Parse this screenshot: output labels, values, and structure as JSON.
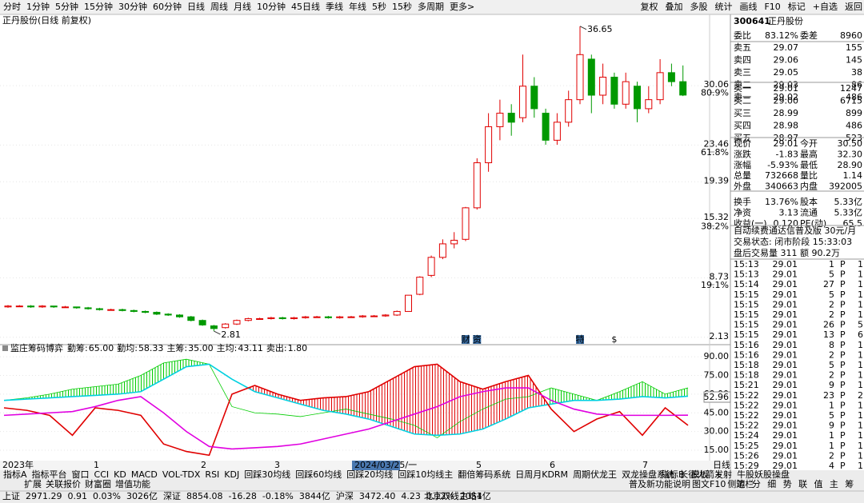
{
  "toolbar": {
    "periods": [
      "分时",
      "1分钟",
      "5分钟",
      "15分钟",
      "30分钟",
      "60分钟",
      "日线",
      "周线",
      "月线",
      "10分钟",
      "45日线",
      "季线",
      "年线",
      "5秒",
      "15秒",
      "多周期",
      "更多>"
    ],
    "active": "日线",
    "tools": [
      "复权",
      "叠加",
      "多股",
      "统计",
      "画线",
      "F10",
      "标记",
      "+自选",
      "返回"
    ]
  },
  "chart_data": [
    {
      "type": "candlestick",
      "title": "正丹股份(日线 前复权)",
      "ylim": [
        1.4,
        36.9
      ],
      "yticks": [
        30.06,
        23.46,
        19.39,
        15.32,
        8.73,
        2.13
      ],
      "ratio_ticks": [
        {
          "value": 29.3,
          "label": "80.9%"
        },
        {
          "value": 22.7,
          "label": "61.8%"
        },
        {
          "value": 14.5,
          "label": "38.2%"
        },
        {
          "value": 7.97,
          "label": "19.1%"
        }
      ],
      "up_color": "#e00000",
      "down_color": "#009900",
      "high_label": 36.65,
      "high_index": 50,
      "low_label": 2.81,
      "low_index": 18,
      "markers": [
        {
          "label": "财",
          "index": 40
        },
        {
          "label": "资",
          "index": 41
        },
        {
          "label": "特",
          "index": 50
        },
        {
          "label": "$",
          "index": 53
        }
      ],
      "x_labels": [
        "2023年",
        "1",
        "2",
        "3",
        "2024/03/25/一",
        "5",
        "6",
        "7"
      ],
      "candles": [
        [
          5.5,
          5.6,
          5.7,
          5.4
        ],
        [
          5.6,
          5.6,
          5.7,
          5.5
        ],
        [
          5.6,
          5.5,
          5.7,
          5.4
        ],
        [
          5.5,
          5.6,
          5.7,
          5.4
        ],
        [
          5.6,
          5.5,
          5.6,
          5.4
        ],
        [
          5.5,
          5.5,
          5.6,
          5.4
        ],
        [
          5.5,
          5.4,
          5.5,
          5.3
        ],
        [
          5.4,
          5.3,
          5.5,
          5.2
        ],
        [
          5.3,
          5.2,
          5.4,
          5.1
        ],
        [
          5.2,
          5.2,
          5.3,
          5.1
        ],
        [
          5.2,
          5.1,
          5.3,
          5.0
        ],
        [
          5.1,
          5.0,
          5.2,
          4.9
        ],
        [
          5.0,
          4.9,
          5.1,
          4.8
        ],
        [
          4.9,
          4.7,
          5.0,
          4.6
        ],
        [
          4.7,
          4.6,
          4.8,
          4.5
        ],
        [
          4.6,
          4.4,
          4.7,
          4.3
        ],
        [
          4.4,
          4.0,
          4.5,
          3.9
        ],
        [
          4.0,
          3.5,
          4.1,
          3.4
        ],
        [
          3.4,
          3.1,
          3.5,
          2.81
        ],
        [
          3.2,
          3.6,
          3.7,
          3.1
        ],
        [
          3.6,
          4.0,
          4.1,
          3.5
        ],
        [
          4.0,
          4.2,
          4.3,
          3.9
        ],
        [
          4.2,
          4.2,
          4.3,
          4.1
        ],
        [
          4.2,
          4.3,
          4.4,
          4.1
        ],
        [
          4.3,
          4.2,
          4.4,
          4.1
        ],
        [
          4.2,
          4.3,
          4.4,
          4.1
        ],
        [
          4.3,
          4.4,
          4.5,
          4.2
        ],
        [
          4.4,
          4.4,
          4.5,
          4.3
        ],
        [
          4.4,
          4.3,
          4.5,
          4.2
        ],
        [
          4.3,
          4.4,
          4.5,
          4.2
        ],
        [
          4.4,
          4.4,
          4.5,
          4.3
        ],
        [
          4.4,
          4.5,
          4.6,
          4.3
        ],
        [
          4.5,
          4.5,
          4.6,
          4.4
        ],
        [
          4.5,
          4.6,
          4.7,
          4.4
        ],
        [
          4.6,
          5.0,
          5.1,
          4.5
        ],
        [
          5.0,
          6.8,
          6.8,
          5.0
        ],
        [
          6.9,
          8.8,
          8.9,
          6.8
        ],
        [
          9.0,
          11.0,
          11.2,
          8.8
        ],
        [
          11.0,
          12.5,
          13.0,
          10.8
        ],
        [
          12.5,
          12.9,
          13.8,
          12.0
        ],
        [
          13.0,
          16.5,
          16.6,
          12.8
        ],
        [
          16.5,
          21.5,
          22.0,
          16.3
        ],
        [
          21.5,
          25.5,
          27.0,
          20.5
        ],
        [
          25.5,
          27.0,
          28.5,
          24.0
        ],
        [
          27.0,
          26.0,
          28.0,
          24.5
        ],
        [
          26.5,
          30.0,
          33.5,
          26.0
        ],
        [
          30.0,
          27.5,
          31.0,
          26.5
        ],
        [
          27.0,
          24.0,
          27.5,
          23.5
        ],
        [
          24.0,
          26.0,
          27.0,
          23.5
        ],
        [
          26.0,
          28.5,
          29.5,
          25.5
        ],
        [
          28.5,
          33.5,
          36.65,
          28.0
        ],
        [
          33.0,
          29.0,
          33.5,
          27.0
        ],
        [
          29.0,
          31.0,
          32.5,
          28.0
        ],
        [
          31.0,
          28.0,
          31.5,
          27.5
        ],
        [
          28.0,
          30.5,
          31.5,
          27.5
        ],
        [
          30.0,
          27.5,
          30.5,
          26.0
        ],
        [
          27.5,
          28.5,
          30.0,
          27.0
        ],
        [
          28.5,
          31.5,
          33.0,
          28.0
        ],
        [
          31.5,
          30.5,
          32.5,
          30.0
        ],
        [
          30.5,
          29.01,
          32.3,
          28.9
        ]
      ]
    },
    {
      "type": "line",
      "title": "监庄筹码博弈",
      "ylim": [
        5.4,
        93.9
      ],
      "yticks": [
        {
          "value": 90,
          "label": "90.00"
        },
        {
          "value": 75,
          "label": "75.00"
        },
        {
          "value": 60,
          "label": "60.00"
        },
        {
          "value": 45,
          "label": "45.00"
        },
        {
          "value": 30,
          "label": "30.00"
        },
        {
          "value": 15,
          "label": "15.00"
        }
      ],
      "current_label": "52.96",
      "sell_name": "卖出:",
      "sell_label": "1.80",
      "sell_color": "#e00000",
      "series": [
        {
          "name": "勤筹:",
          "label": "65.00",
          "color": "#00cc00",
          "values": [
            55,
            57,
            60,
            64,
            66,
            68,
            75,
            85,
            88,
            84,
            50,
            45,
            44,
            42,
            45,
            48,
            44,
            40,
            35,
            25,
            38,
            48,
            56,
            58,
            65,
            60,
            55,
            62,
            70,
            60,
            65
          ]
        },
        {
          "name": "勤均:",
          "label": "58.33",
          "color": "#00d0e0",
          "values": [
            55,
            56,
            57,
            58,
            59,
            60,
            62,
            72,
            82,
            84,
            72,
            62,
            57,
            52,
            47,
            44,
            40,
            34,
            28,
            27,
            28,
            32,
            40,
            49,
            52,
            55,
            55,
            56,
            58,
            57,
            58.33
          ]
        },
        {
          "name": "主筹:",
          "label": "35.00",
          "color": "#e00000",
          "values": [
            49,
            47,
            43,
            27,
            49,
            47,
            43,
            20,
            14,
            11,
            60,
            67,
            60,
            55,
            57,
            58,
            62,
            72,
            82,
            84,
            70,
            64,
            70,
            75,
            48,
            30,
            40,
            46,
            27,
            49,
            35
          ]
        },
        {
          "name": "主均:",
          "label": "43.11",
          "color": "#e000e0",
          "values": [
            43,
            44,
            45,
            46,
            50,
            55,
            58,
            45,
            30,
            18,
            16,
            17,
            18,
            20,
            24,
            28,
            32,
            38,
            44,
            50,
            58,
            62,
            65,
            65,
            55,
            48,
            44,
            43,
            43,
            43,
            43.11
          ]
        }
      ]
    }
  ],
  "quote": {
    "code": "300641",
    "name": "正丹股份",
    "ratio": {
      "cells": [
        "委比",
        "83.12%",
        "委差",
        "8960"
      ],
      "colors": [
        "#e00000",
        "#e00000"
      ]
    },
    "asks": [
      [
        "卖五",
        "29.07",
        "155"
      ],
      [
        "卖四",
        "29.06",
        "145"
      ],
      [
        "卖三",
        "29.05",
        "38"
      ],
      [
        "卖二",
        "29.03",
        "86"
      ],
      [
        "卖一",
        "29.02",
        "486"
      ]
    ],
    "bids": [
      [
        "买一",
        "29.01",
        "1247"
      ],
      [
        "买二",
        "29.00",
        "6715"
      ],
      [
        "买三",
        "28.99",
        "899"
      ],
      [
        "买四",
        "28.98",
        "486"
      ],
      [
        "买五",
        "28.97",
        "523"
      ]
    ],
    "price_color": "#009900",
    "stats": [
      {
        "cells": [
          "现价",
          "29.01",
          "今开",
          "30.50"
        ],
        "colors": [
          "#009900",
          "#009900"
        ]
      },
      {
        "cells": [
          "涨跌",
          "-1.83",
          "最高",
          "32.30"
        ],
        "colors": [
          "#009900",
          "#e00000"
        ]
      },
      {
        "cells": [
          "涨幅",
          "-5.93%",
          "最低",
          "28.90"
        ],
        "colors": [
          "#009900",
          "#009900"
        ]
      },
      {
        "cells": [
          "总量",
          "732668",
          "量比",
          "1.14"
        ],
        "colors": [
          "#000000",
          "#e00000"
        ]
      },
      {
        "cells": [
          "外盘",
          "340663",
          "内盘",
          "392005"
        ],
        "colors": [
          "#e00000",
          "#009900"
        ]
      },
      {
        "cells": [
          "换手",
          "13.76%",
          "股本",
          "5.33亿"
        ],
        "colors": [
          "#000000",
          "#000000"
        ]
      },
      {
        "cells": [
          "净资",
          "3.13",
          "流通",
          "5.33亿"
        ],
        "colors": [
          "#000000",
          "#000000"
        ]
      },
      {
        "cells": [
          "收益(一)",
          "0.120",
          "PE(动)",
          "65.5"
        ],
        "colors": [
          "#000000",
          "#000000"
        ]
      }
    ],
    "promo": "自动续费通达信普及版 30元/月",
    "status": "交易状态: 闭市阶段 15:33:03",
    "after": "盘后交易量 311 额 90.2万",
    "ticks": [
      [
        "15:13",
        "29.01",
        "1",
        "P",
        "1"
      ],
      [
        "15:13",
        "29.01",
        "5",
        "P",
        "1"
      ],
      [
        "15:14",
        "29.01",
        "27",
        "P",
        "1"
      ],
      [
        "15:15",
        "29.01",
        "5",
        "P",
        "1"
      ],
      [
        "15:15",
        "29.01",
        "2",
        "P",
        "1"
      ],
      [
        "15:15",
        "29.01",
        "2",
        "P",
        "1"
      ],
      [
        "15:15",
        "29.01",
        "26",
        "P",
        "5"
      ],
      [
        "15:15",
        "29.01",
        "13",
        "P",
        "6"
      ],
      [
        "15:16",
        "29.01",
        "8",
        "P",
        "1"
      ],
      [
        "15:16",
        "29.01",
        "2",
        "P",
        "1"
      ],
      [
        "15:18",
        "29.01",
        "5",
        "P",
        "1"
      ],
      [
        "15:18",
        "29.01",
        "2",
        "P",
        "1"
      ],
      [
        "15:21",
        "29.01",
        "9",
        "P",
        "1"
      ],
      [
        "15:22",
        "29.01",
        "23",
        "P",
        "2"
      ],
      [
        "15:22",
        "29.01",
        "1",
        "P",
        "1"
      ],
      [
        "15:22",
        "29.01",
        "5",
        "P",
        "1"
      ],
      [
        "15:22",
        "29.01",
        "9",
        "P",
        "1"
      ],
      [
        "15:24",
        "29.01",
        "1",
        "P",
        "1"
      ],
      [
        "15:25",
        "29.01",
        "1",
        "P",
        "1"
      ],
      [
        "15:26",
        "29.01",
        "2",
        "P",
        "1"
      ],
      [
        "15:29",
        "29.01",
        "4",
        "P",
        "1"
      ]
    ]
  },
  "tabs": {
    "indicators": [
      "指标A",
      "指标平台",
      "窗口",
      "CCI",
      "KD",
      "MACD",
      "VOL-TDX",
      "RSI",
      "KDJ",
      "回踩30均线",
      "回踩60均线",
      "回踩20均线",
      "回踩10均线主",
      "翻倍筹码系统",
      "日周月KDRM",
      "周期伏龙王",
      "双龙操盘系统",
      "长征火箭发射",
      "牛股妖股操盘"
    ],
    "right": [
      "指标B",
      "模板",
      "+",
      "-"
    ],
    "period": "日线",
    "extras": [
      "扩展",
      "关联报价",
      "财富圈",
      "增值功能"
    ],
    "extras_right": [
      "普及新功能说明",
      "图文F10",
      "侧边栏"
    ],
    "side": [
      "笔",
      "分",
      "细",
      "势",
      "联",
      "值",
      "主",
      "筹"
    ]
  },
  "statusbar": [
    {
      "t": "上证",
      "c": "#000000"
    },
    {
      "t": "2971.29",
      "c": "#e00000"
    },
    {
      "t": "0.91",
      "c": "#e00000"
    },
    {
      "t": "0.03%",
      "c": "#e00000"
    },
    {
      "t": "3026亿",
      "c": "#000000"
    },
    {
      "t": "深证",
      "c": "#000000"
    },
    {
      "t": "8854.08",
      "c": "#009900"
    },
    {
      "t": "-16.28",
      "c": "#009900"
    },
    {
      "t": "-0.18%",
      "c": "#009900"
    },
    {
      "t": "3844亿",
      "c": "#000000"
    },
    {
      "t": "沪深",
      "c": "#000000"
    },
    {
      "t": "3472.40",
      "c": "#e00000"
    },
    {
      "t": "4.23",
      "c": "#e00000"
    },
    {
      "t": "0.12%",
      "c": "#e00000"
    },
    {
      "t": "2051亿",
      "c": "#000000"
    },
    {
      "t": "北京双线主站4",
      "c": "#000000"
    }
  ]
}
